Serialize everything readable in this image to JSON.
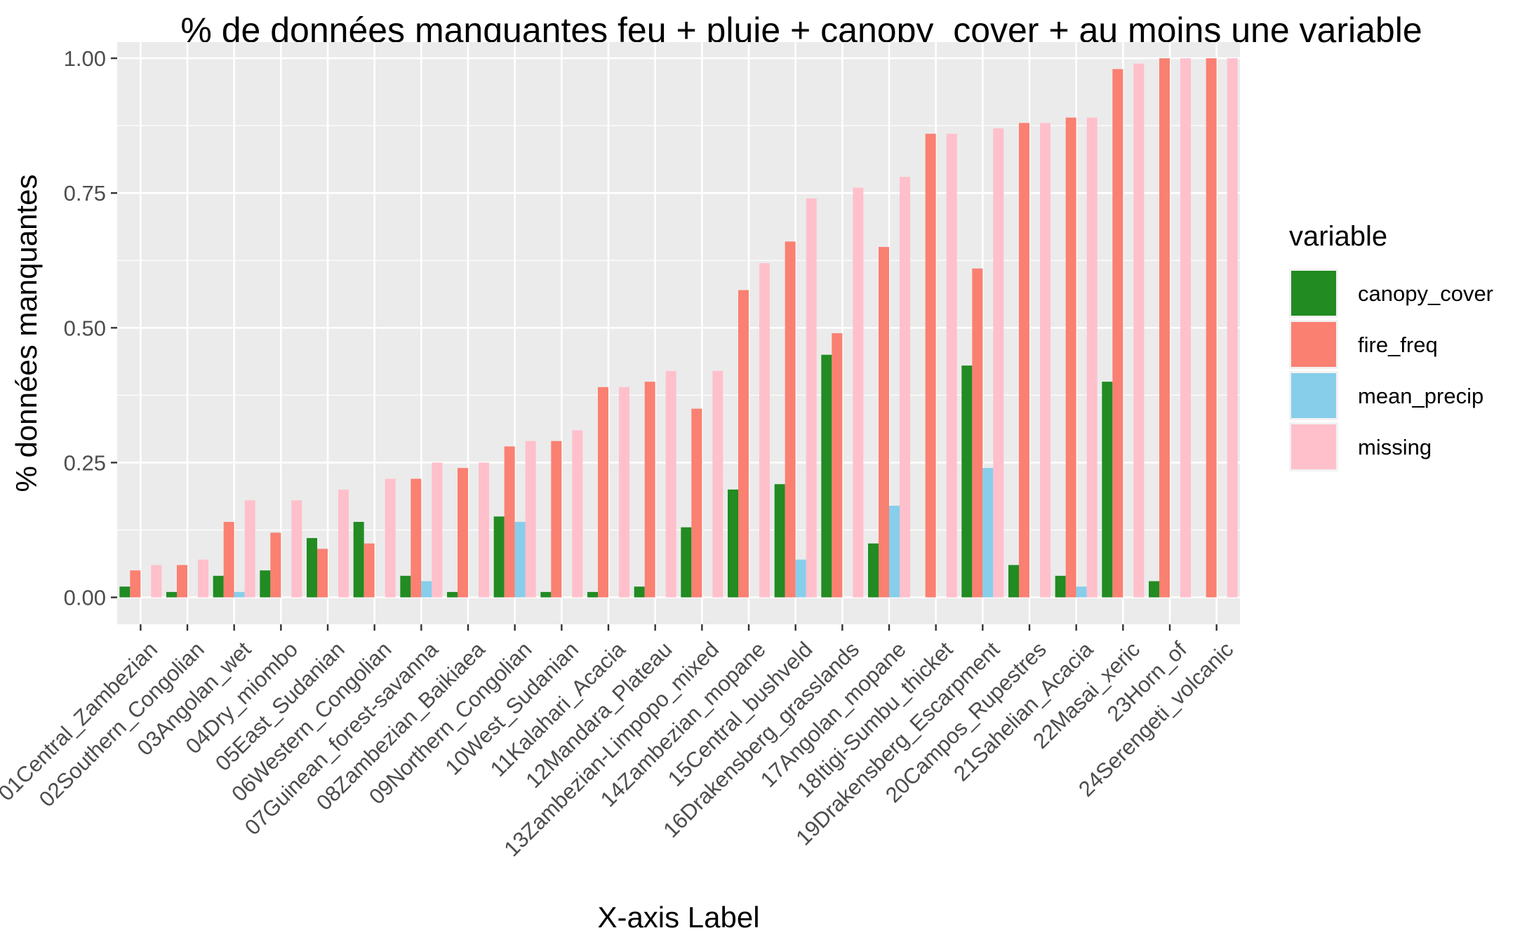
{
  "chart_data": {
    "type": "bar",
    "title": "% de données manquantes feu + pluie + canopy_cover + au moins une variable",
    "xlabel": "X-axis Label",
    "ylabel": "% données manquantes",
    "ylim": [
      -0.05,
      1.03
    ],
    "yticks": [
      0.0,
      0.25,
      0.5,
      0.75,
      1.0
    ],
    "ytick_labels": [
      "0.00",
      "0.25",
      "0.50",
      "0.75",
      "1.00"
    ],
    "grid": true,
    "legend_position": "right",
    "legend_title": "variable",
    "categories": [
      "01Central_Zambezian",
      "02Southern_Congolian",
      "03Angolan_wet",
      "04Dry_miombo",
      "05East_Sudanian",
      "06Western_Congolian",
      "07Guinean_forest-savanna",
      "08Zambezian_Baikiaea",
      "09Northern_Congolian",
      "10West_Sudanian",
      "11Kalahari_Acacia",
      "12Mandara_Plateau",
      "13Zambezian-Limpopo_mixed",
      "14Zambezian_mopane",
      "15Central_bushveld",
      "16Drakensberg_grasslands",
      "17Angolan_mopane",
      "18Itigi-Sumbu_thicket",
      "19Drakensberg_Escarpment",
      "20Campos_Rupestres",
      "21Sahelian_Acacia",
      "22Masai_xeric",
      "23Horn_of",
      "24Serengeti_volcanic"
    ],
    "series": [
      {
        "name": "canopy_cover",
        "color": "#228B22",
        "values": [
          0.02,
          0.01,
          0.04,
          0.05,
          0.11,
          0.14,
          0.04,
          0.01,
          0.15,
          0.01,
          0.01,
          0.02,
          0.13,
          0.2,
          0.21,
          0.45,
          0.1,
          0.0,
          0.43,
          0.06,
          0.04,
          0.4,
          0.03,
          0.0
        ]
      },
      {
        "name": "fire_freq",
        "color": "#FA8072",
        "values": [
          0.05,
          0.06,
          0.14,
          0.12,
          0.09,
          0.1,
          0.22,
          0.24,
          0.28,
          0.29,
          0.39,
          0.4,
          0.35,
          0.57,
          0.66,
          0.49,
          0.65,
          0.86,
          0.61,
          0.88,
          0.89,
          0.98,
          1.0,
          1.0
        ]
      },
      {
        "name": "mean_precip",
        "color": "#87CEEB",
        "values": [
          0.0,
          0.0,
          0.01,
          0.0,
          0.0,
          0.0,
          0.03,
          0.0,
          0.14,
          0.0,
          0.0,
          0.0,
          0.0,
          0.0,
          0.07,
          0.0,
          0.17,
          0.0,
          0.24,
          0.0,
          0.02,
          0.0,
          0.0,
          0.0
        ]
      },
      {
        "name": "missing",
        "color": "#FFC0CB",
        "values": [
          0.06,
          0.07,
          0.18,
          0.18,
          0.2,
          0.22,
          0.25,
          0.25,
          0.29,
          0.31,
          0.39,
          0.42,
          0.42,
          0.62,
          0.74,
          0.76,
          0.78,
          0.86,
          0.87,
          0.88,
          0.89,
          0.99,
          1.0,
          1.0
        ]
      }
    ]
  }
}
